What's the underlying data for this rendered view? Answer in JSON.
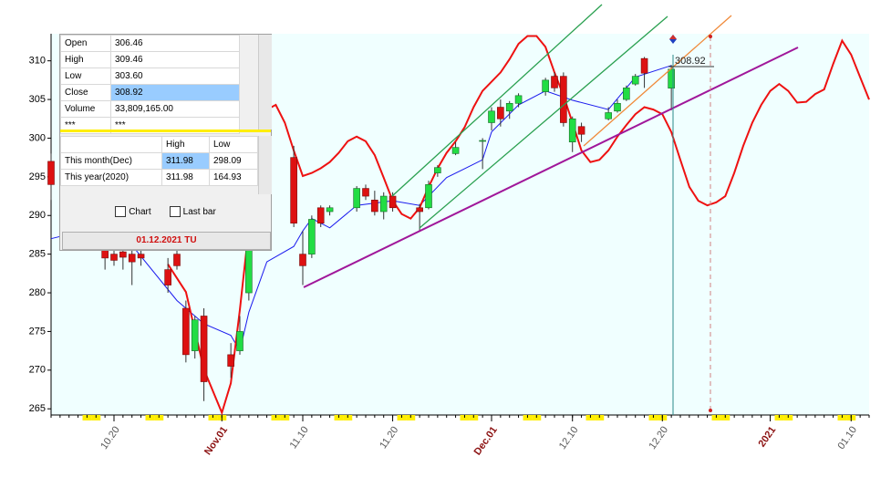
{
  "chart_data": {
    "type": "candlestick",
    "ylim": [
      264.2,
      313.5
    ],
    "yticks": [
      265,
      270,
      275,
      280,
      285,
      290,
      295,
      300,
      305,
      310
    ],
    "xlim": [
      "10.13",
      "01.12"
    ],
    "xticks": [
      {
        "value": "10.20",
        "label": "10.20"
      },
      {
        "value": "11.01",
        "label": "Nov.01"
      },
      {
        "value": "11.10",
        "label": "11.10"
      },
      {
        "value": "11.20",
        "label": "11.20"
      },
      {
        "value": "12.01",
        "label": "Dec.01"
      },
      {
        "value": "12.10",
        "label": "12.10"
      },
      {
        "value": "12.20",
        "label": "12.20"
      },
      {
        "value": "01.01",
        "label": "2021"
      },
      {
        "value": "01.10",
        "label": "01.10"
      }
    ],
    "tick_color": "#555555",
    "month_tick_color": "#8b1010",
    "up_color": "#22dd44",
    "down_color": "#dd1111",
    "candles": {
      "x": [
        "10.13",
        "10.19",
        "10.20",
        "10.21",
        "10.22",
        "10.23",
        "10.26",
        "10.27",
        "10.28",
        "10.29",
        "10.30",
        "11.02",
        "11.03",
        "11.04",
        "11.05",
        "11.06",
        "11.09",
        "11.10",
        "11.11",
        "11.12",
        "11.13",
        "11.16",
        "11.17",
        "11.18",
        "11.19",
        "11.20",
        "11.23",
        "11.24",
        "11.25",
        "11.27",
        "11.30",
        "12.01",
        "12.02",
        "12.03",
        "12.04",
        "12.07",
        "12.08",
        "12.09",
        "12.10",
        "12.11",
        "12.14",
        "12.15",
        "12.16",
        "12.17",
        "12.18",
        "12.21"
      ],
      "open": [
        297,
        285.5,
        285,
        285.3,
        285,
        285,
        283,
        285,
        278,
        272.5,
        277,
        272,
        272.5,
        280,
        293,
        301,
        297.5,
        285,
        285,
        291,
        290.5,
        291,
        293.5,
        292,
        290.5,
        292.5,
        291,
        291,
        295.5,
        298,
        299.6,
        302,
        304,
        303.5,
        304.5,
        306,
        308,
        308,
        299.5,
        301.5,
        302.5,
        303.5,
        305,
        307,
        310.3,
        306.46
      ],
      "high": [
        298,
        286,
        285.5,
        286,
        285.5,
        286,
        284.5,
        287,
        279,
        277,
        278,
        273.5,
        277,
        288,
        300,
        304,
        299,
        288,
        290,
        291.3,
        291.3,
        293.8,
        294,
        293.2,
        293,
        293,
        291.5,
        294.5,
        296.5,
        299.5,
        300,
        304,
        305,
        304.8,
        305.8,
        307.8,
        308.5,
        308.5,
        302.8,
        302,
        304,
        305,
        306.8,
        308.3,
        310.5,
        309.46
      ],
      "low": [
        292,
        283,
        283.5,
        283,
        281,
        283.5,
        280,
        283,
        271,
        271.5,
        266,
        269,
        272,
        279,
        292,
        299,
        288.5,
        281,
        284.5,
        288.5,
        290,
        290.5,
        292,
        290,
        289.5,
        290.5,
        288,
        290.8,
        295,
        297.8,
        296,
        301,
        301.5,
        302.5,
        304,
        305.5,
        306,
        301.5,
        298.2,
        299.5,
        302.3,
        303.3,
        304.8,
        306.8,
        306.5,
        303.6
      ],
      "close": [
        294,
        284.5,
        284.2,
        284.6,
        284,
        284.5,
        281,
        283.5,
        272,
        276.5,
        268.5,
        270.5,
        275,
        286,
        299,
        302.5,
        289,
        283.5,
        289.5,
        289,
        291,
        293.5,
        292.5,
        290.5,
        292.5,
        291,
        290.5,
        294,
        296.2,
        298.8,
        299.7,
        303.5,
        302.5,
        304.5,
        305.5,
        307.5,
        306.5,
        302,
        302.5,
        300.5,
        303.3,
        304.5,
        306.5,
        308,
        308.4,
        308.92
      ]
    },
    "lines": [
      {
        "color": "#1a1aee",
        "x": [
          "10.13",
          "10.20",
          "10.27",
          "10.30",
          "11.02",
          "11.03",
          "11.04",
          "11.06",
          "11.09",
          "11.10",
          "11.11",
          "11.13",
          "11.16",
          "11.20",
          "11.23",
          "11.26",
          "11.30",
          "12.01",
          "12.04",
          "12.07",
          "12.10",
          "12.14",
          "12.17",
          "12.21"
        ],
        "values": [
          287,
          289,
          279,
          276,
          274.5,
          272.5,
          277.5,
          284,
          286,
          288,
          289.6,
          288.4,
          291.3,
          291.9,
          291.3,
          294.9,
          297.2,
          300.8,
          304.3,
          306.1,
          304.9,
          303.7,
          307.9,
          309.4
        ]
      },
      {
        "color": "#ee1111",
        "x": [
          "10.26",
          "10.28",
          "10.30",
          "11.01",
          "11.02",
          "11.03",
          "11.04",
          "11.05",
          "11.06",
          "11.07",
          "11.08",
          "11.09",
          "11.10",
          "11.11",
          "11.12",
          "11.13",
          "11.14",
          "11.15",
          "11.16",
          "11.17",
          "11.18",
          "11.19",
          "11.20",
          "11.21",
          "11.22",
          "11.23",
          "11.24",
          "11.25",
          "11.26",
          "11.27",
          "11.28",
          "11.29",
          "11.30",
          "12.01",
          "12.02",
          "12.03",
          "12.04",
          "12.05",
          "12.06",
          "12.07",
          "12.08",
          "12.09",
          "12.10",
          "12.11",
          "12.12",
          "12.13",
          "12.14",
          "12.15",
          "12.16",
          "12.17",
          "12.18",
          "12.19",
          "12.20",
          "12.21",
          "12.22",
          "12.23",
          "12.24",
          "12.25",
          "12.26",
          "12.27",
          "12.28",
          "12.29",
          "12.30",
          "12.31",
          "01.01",
          "01.02",
          "01.03",
          "01.04",
          "01.05",
          "01.06",
          "01.07",
          "01.08",
          "01.09",
          "01.10",
          "01.11",
          "01.12"
        ],
        "values": [
          283.7,
          280.1,
          270.1,
          264.5,
          268.3,
          277.8,
          288.4,
          296.7,
          303.7,
          304.3,
          302.0,
          298.4,
          295.1,
          295.5,
          296.1,
          296.9,
          298.1,
          299.6,
          300.2,
          299.6,
          297.8,
          294.9,
          291.9,
          290.2,
          289.6,
          291.0,
          293.7,
          296.1,
          298.1,
          299.6,
          301.4,
          304.0,
          306.1,
          307.3,
          308.5,
          310.2,
          312.2,
          313.2,
          313.2,
          311.8,
          308.5,
          305.5,
          302.0,
          298.4,
          296.9,
          297.2,
          298.4,
          300.2,
          301.7,
          303.1,
          304.0,
          303.7,
          303.1,
          300.8,
          297.2,
          293.7,
          291.9,
          291.3,
          291.7,
          292.5,
          295.5,
          299.0,
          302.0,
          304.3,
          306.1,
          307.0,
          306.1,
          304.6,
          304.7,
          305.7,
          306.3,
          309.6,
          312.6,
          310.8,
          307.9,
          305.0
        ]
      }
    ],
    "last_price_label": "308.92"
  },
  "info_panel": {
    "quote": [
      [
        "Open",
        "306.46"
      ],
      [
        "High",
        "309.46"
      ],
      [
        "Low",
        "303.60"
      ],
      [
        "Close",
        "308.92"
      ],
      [
        "Volume",
        "33,809,165.00"
      ],
      [
        "***",
        "***"
      ]
    ],
    "range_header": [
      "High",
      "Low"
    ],
    "ranges": [
      [
        "This month(Dec)",
        "311.98",
        "298.09"
      ],
      [
        "This year(2020)",
        "311.98",
        "164.93"
      ]
    ],
    "checkboxes": [
      "Chart",
      "Last bar"
    ],
    "date": "01.12.2021 TU"
  }
}
